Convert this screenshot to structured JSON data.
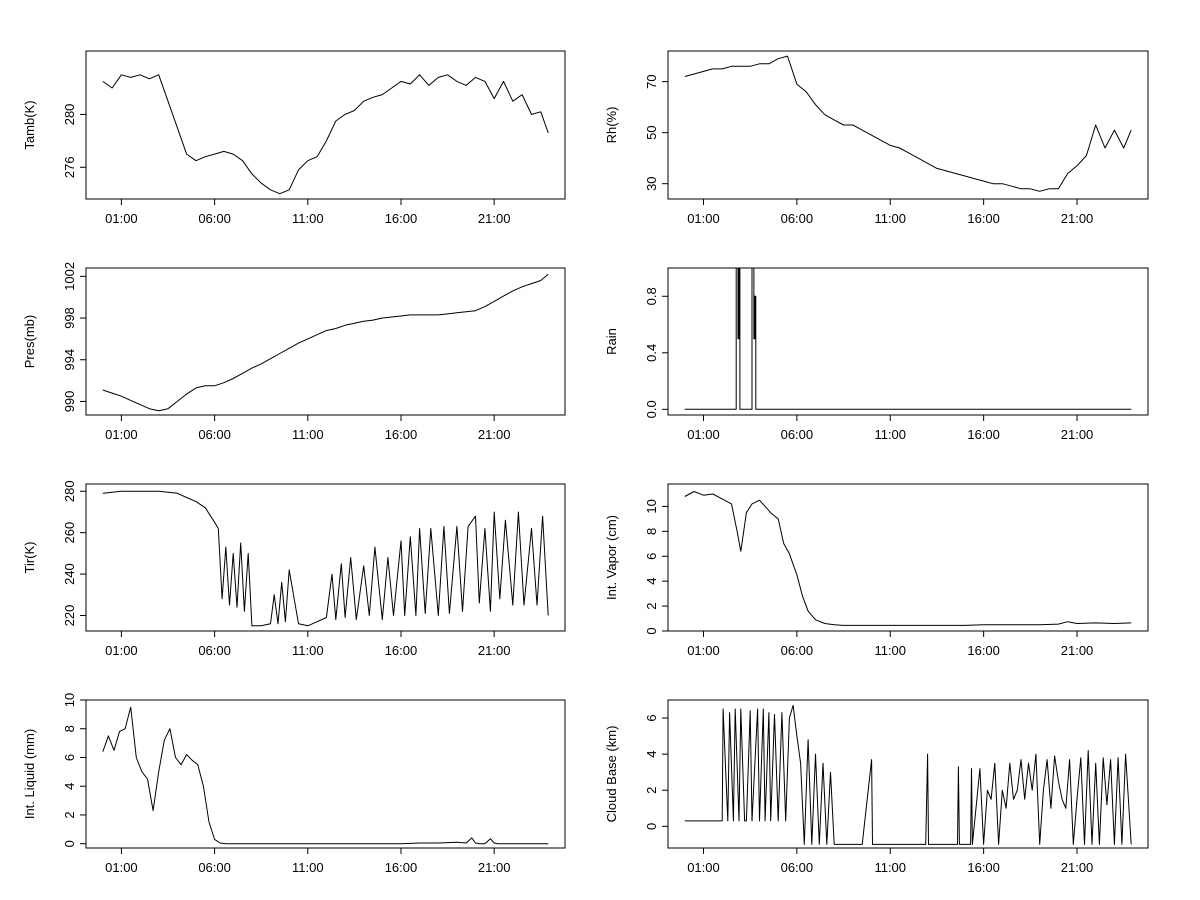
{
  "chart_data": [
    {
      "type": "line",
      "ylabel": "Tamb(K)",
      "xlim": [
        -0.9,
        24.8
      ],
      "ylim": [
        273.6,
        284.8
      ],
      "x_ticks": [
        1,
        6,
        11,
        16,
        21
      ],
      "x_tick_labels": [
        "01:00",
        "06:00",
        "11:00",
        "16:00",
        "21:00"
      ],
      "y_ticks": [
        276,
        280
      ],
      "y_tick_labels": [
        "276",
        "280"
      ],
      "series": [
        {
          "x": [
            0,
            0.5,
            1,
            1.5,
            2,
            2.5,
            3,
            3.5,
            4,
            4.5,
            5,
            5.5,
            6,
            6.5,
            7,
            7.5,
            8,
            8.5,
            9,
            9.5,
            10,
            10.5,
            11,
            11.5,
            12,
            12.5,
            13,
            13.5,
            14,
            14.5,
            15,
            15.5,
            16,
            16.5,
            17,
            17.5,
            18,
            18.5,
            19,
            19.5,
            20,
            20.5,
            21,
            21.5,
            22,
            22.5,
            23,
            23.5,
            23.9
          ],
          "y": [
            282.5,
            282.0,
            283.0,
            282.8,
            283.0,
            282.7,
            283.0,
            281.0,
            279.0,
            277.0,
            276.5,
            276.8,
            277.0,
            277.2,
            277.0,
            276.5,
            275.5,
            274.8,
            274.3,
            274.0,
            274.3,
            275.8,
            276.5,
            276.8,
            278.0,
            279.5,
            280.0,
            280.3,
            281.0,
            281.3,
            281.5,
            282.0,
            282.5,
            282.3,
            283.0,
            282.2,
            282.8,
            283.0,
            282.5,
            282.2,
            282.8,
            282.5,
            281.2,
            282.5,
            281.0,
            281.5,
            280.0,
            280.2,
            278.6
          ]
        }
      ]
    },
    {
      "type": "line",
      "ylabel": "Rh(%)",
      "xlim": [
        -0.9,
        24.8
      ],
      "ylim": [
        24,
        82
      ],
      "x_ticks": [
        1,
        6,
        11,
        16,
        21
      ],
      "x_tick_labels": [
        "01:00",
        "06:00",
        "11:00",
        "16:00",
        "21:00"
      ],
      "y_ticks": [
        30,
        50,
        70
      ],
      "y_tick_labels": [
        "30",
        "50",
        "70"
      ],
      "series": [
        {
          "x": [
            0,
            0.5,
            1,
            1.5,
            2,
            2.5,
            3,
            3.5,
            4,
            4.5,
            5,
            5.5,
            6,
            6.5,
            7,
            7.5,
            8,
            8.5,
            9,
            9.5,
            10,
            10.5,
            11,
            11.5,
            12,
            12.5,
            13,
            13.5,
            14,
            14.5,
            15,
            15.5,
            16,
            16.5,
            17,
            17.5,
            18,
            18.5,
            19,
            19.5,
            20,
            20.5,
            21,
            21.5,
            22,
            22.5,
            23,
            23.5,
            23.9
          ],
          "y": [
            72,
            73,
            74,
            75,
            75,
            76,
            76,
            76,
            77,
            77,
            79,
            80,
            69,
            66,
            61,
            57,
            55,
            53,
            53,
            51,
            49,
            47,
            45,
            44,
            42,
            40,
            38,
            36,
            35,
            34,
            33,
            32,
            31,
            30,
            30,
            29,
            28,
            28,
            27,
            28,
            28,
            34,
            37,
            41,
            53,
            44,
            51,
            44,
            51
          ]
        }
      ]
    },
    {
      "type": "line",
      "ylabel": "Pres(mb)",
      "xlim": [
        -0.9,
        24.8
      ],
      "ylim": [
        988.7,
        1002.8
      ],
      "x_ticks": [
        1,
        6,
        11,
        16,
        21
      ],
      "x_tick_labels": [
        "01:00",
        "06:00",
        "11:00",
        "16:00",
        "21:00"
      ],
      "y_ticks": [
        990,
        994,
        998,
        1002
      ],
      "y_tick_labels": [
        "990",
        "994",
        "998",
        "1002"
      ],
      "series": [
        {
          "x": [
            0,
            0.5,
            1,
            1.5,
            2,
            2.5,
            3,
            3.5,
            4,
            4.5,
            5,
            5.5,
            6,
            6.5,
            7,
            7.5,
            8,
            8.5,
            9,
            9.5,
            10,
            10.5,
            11,
            11.5,
            12,
            12.5,
            13,
            13.5,
            14,
            14.5,
            15,
            15.5,
            16,
            16.5,
            17,
            17.5,
            18,
            18.5,
            19,
            19.5,
            20,
            20.5,
            21,
            21.5,
            22,
            22.5,
            23,
            23.5,
            23.9
          ],
          "y": [
            991.1,
            990.8,
            990.5,
            990.1,
            989.7,
            989.3,
            989.1,
            989.3,
            990.0,
            990.7,
            991.3,
            991.5,
            991.5,
            991.8,
            992.2,
            992.7,
            993.2,
            993.6,
            994.1,
            994.6,
            995.1,
            995.6,
            996.0,
            996.4,
            996.8,
            997.0,
            997.3,
            997.5,
            997.7,
            997.8,
            998.0,
            998.1,
            998.2,
            998.3,
            998.3,
            998.3,
            998.3,
            998.4,
            998.5,
            998.6,
            998.7,
            999.1,
            999.6,
            1000.1,
            1000.6,
            1001.0,
            1001.3,
            1001.6,
            1002.2
          ]
        }
      ]
    },
    {
      "type": "line",
      "ylabel": "Rain",
      "xlim": [
        -0.9,
        24.8
      ],
      "ylim": [
        -0.04,
        1.0
      ],
      "x_ticks": [
        1,
        6,
        11,
        16,
        21
      ],
      "x_tick_labels": [
        "01:00",
        "06:00",
        "11:00",
        "16:00",
        "21:00"
      ],
      "y_ticks": [
        0.0,
        0.4,
        0.8
      ],
      "y_tick_labels": [
        "0.0",
        "0.4",
        "0.8"
      ],
      "series": [
        {
          "x": [
            0,
            2.75,
            2.75,
            2.85,
            2.85,
            2.9,
            2.9,
            2.95,
            2.95,
            3.6,
            3.6,
            3.7,
            3.7,
            3.75,
            3.75,
            3.8,
            3.8,
            23.9
          ],
          "y": [
            0,
            0,
            1,
            1,
            0.5,
            0.5,
            1,
            1,
            0,
            0,
            1,
            1,
            0.5,
            0.5,
            0.8,
            0.8,
            0,
            0
          ]
        }
      ]
    },
    {
      "type": "line",
      "ylabel": "Tir(K)",
      "xlim": [
        -0.9,
        24.8
      ],
      "ylim": [
        212.5,
        283.5
      ],
      "x_ticks": [
        1,
        6,
        11,
        16,
        21
      ],
      "x_tick_labels": [
        "01:00",
        "06:00",
        "11:00",
        "16:00",
        "21:00"
      ],
      "y_ticks": [
        220,
        240,
        260,
        280
      ],
      "y_tick_labels": [
        "220",
        "240",
        "260",
        "280"
      ],
      "series": [
        {
          "x": [
            0,
            1,
            2,
            3,
            4,
            4.5,
            5,
            5.5,
            6,
            6.2,
            6.4,
            6.6,
            6.8,
            7.0,
            7.2,
            7.4,
            7.6,
            7.8,
            8.0,
            8.5,
            9.0,
            9.2,
            9.4,
            9.6,
            9.8,
            10.0,
            10.5,
            11,
            11.5,
            12,
            12.3,
            12.5,
            12.8,
            13.0,
            13.3,
            13.6,
            14.0,
            14.3,
            14.6,
            15.0,
            15.3,
            15.6,
            16.0,
            16.2,
            16.5,
            16.8,
            17.0,
            17.3,
            17.6,
            18.0,
            18.3,
            18.6,
            19.0,
            19.3,
            19.6,
            20.0,
            20.2,
            20.5,
            20.8,
            21.0,
            21.3,
            21.6,
            22.0,
            22.3,
            22.6,
            23.0,
            23.3,
            23.6,
            23.9
          ],
          "y": [
            279,
            280,
            280,
            280,
            279,
            277,
            275,
            272,
            265,
            262,
            228,
            253,
            225,
            250,
            224,
            255,
            222,
            250,
            215,
            215,
            216,
            230,
            216,
            236,
            217,
            242,
            216,
            215,
            217,
            219,
            240,
            218,
            245,
            219,
            248,
            218,
            244,
            220,
            253,
            218,
            248,
            220,
            256,
            220,
            258,
            220,
            262,
            221,
            262,
            220,
            263,
            221,
            263,
            222,
            263,
            268,
            226,
            262,
            222,
            270,
            228,
            266,
            225,
            270,
            225,
            262,
            225,
            268,
            220
          ]
        }
      ]
    },
    {
      "type": "line",
      "ylabel": "Int. Vapor (cm)",
      "xlim": [
        -0.9,
        24.8
      ],
      "ylim": [
        0,
        11.8
      ],
      "x_ticks": [
        1,
        6,
        11,
        16,
        21
      ],
      "x_tick_labels": [
        "01:00",
        "06:00",
        "11:00",
        "16:00",
        "21:00"
      ],
      "y_ticks": [
        0,
        2,
        4,
        6,
        8,
        10
      ],
      "y_tick_labels": [
        "0",
        "2",
        "4",
        "6",
        "8",
        "10"
      ],
      "series": [
        {
          "x": [
            0,
            0.5,
            1,
            1.5,
            2,
            2.5,
            2.8,
            3.0,
            3.3,
            3.6,
            4,
            4.3,
            4.6,
            5.0,
            5.3,
            5.6,
            6.0,
            6.3,
            6.6,
            7.0,
            7.5,
            8,
            8.5,
            9,
            10,
            11,
            12,
            13,
            14,
            15,
            16,
            17,
            18,
            19,
            20,
            20.5,
            21,
            22,
            23,
            23.9
          ],
          "y": [
            10.8,
            11.2,
            10.9,
            11.0,
            10.6,
            10.2,
            8.0,
            6.4,
            9.5,
            10.2,
            10.5,
            10.0,
            9.5,
            9.0,
            7.0,
            6.2,
            4.5,
            2.8,
            1.6,
            0.9,
            0.6,
            0.5,
            0.45,
            0.45,
            0.45,
            0.45,
            0.45,
            0.45,
            0.45,
            0.45,
            0.5,
            0.5,
            0.5,
            0.5,
            0.55,
            0.75,
            0.6,
            0.65,
            0.6,
            0.65
          ]
        }
      ]
    },
    {
      "type": "line",
      "ylabel": "Int. Liquid (mm)",
      "xlim": [
        -0.9,
        24.8
      ],
      "ylim": [
        -0.3,
        10.0
      ],
      "x_ticks": [
        1,
        6,
        11,
        16,
        21
      ],
      "x_tick_labels": [
        "01:00",
        "06:00",
        "11:00",
        "16:00",
        "21:00"
      ],
      "y_ticks": [
        0,
        2,
        4,
        6,
        8,
        10
      ],
      "y_tick_labels": [
        "0",
        "2",
        "4",
        "6",
        "8",
        "10"
      ],
      "series": [
        {
          "x": [
            0,
            0.3,
            0.6,
            0.9,
            1.2,
            1.5,
            1.8,
            2.1,
            2.4,
            2.7,
            3.0,
            3.3,
            3.6,
            3.9,
            4.2,
            4.5,
            4.8,
            5.1,
            5.4,
            5.7,
            6.0,
            6.3,
            6.6,
            7,
            8,
            10,
            12,
            14,
            16,
            17,
            18,
            19,
            19.5,
            19.8,
            20,
            20.2,
            20.5,
            20.8,
            21,
            21.2,
            21.5,
            22,
            23,
            23.9
          ],
          "y": [
            6.4,
            7.5,
            6.5,
            7.8,
            8.0,
            9.5,
            6.0,
            5.0,
            4.5,
            2.3,
            5.0,
            7.2,
            8.0,
            6.0,
            5.5,
            6.2,
            5.8,
            5.5,
            4.0,
            1.5,
            0.3,
            0.05,
            0.0,
            0.0,
            0.0,
            0.0,
            0.0,
            0.0,
            0.0,
            0.05,
            0.05,
            0.1,
            0.05,
            0.4,
            0.05,
            0.0,
            0.0,
            0.35,
            0.05,
            0.0,
            0.0,
            0.0,
            0.0,
            0.0
          ]
        }
      ]
    },
    {
      "type": "line",
      "ylabel": "Cloud Base (km)",
      "xlim": [
        -0.9,
        24.8
      ],
      "ylim": [
        -1.2,
        7.0
      ],
      "x_ticks": [
        1,
        6,
        11,
        16,
        21
      ],
      "x_tick_labels": [
        "01:00",
        "06:00",
        "11:00",
        "16:00",
        "21:00"
      ],
      "y_ticks": [
        0,
        2,
        4,
        6
      ],
      "y_tick_labels": [
        "0",
        "2",
        "4",
        "6"
      ],
      "series": [
        {
          "x": [
            0,
            1.0,
            1.6,
            2.0,
            2.05,
            2.3,
            2.4,
            2.6,
            2.7,
            2.9,
            3.0,
            3.2,
            3.3,
            3.5,
            3.6,
            3.9,
            4.0,
            4.2,
            4.3,
            4.5,
            4.6,
            4.8,
            5.0,
            5.2,
            5.4,
            5.6,
            5.8,
            6.0,
            6.2,
            6.4,
            6.6,
            6.8,
            7.0,
            7.2,
            7.4,
            7.6,
            7.8,
            8.0,
            9.0,
            9.5,
            10.0,
            10.05,
            10.1,
            11,
            12,
            12.9,
            13.0,
            13.05,
            14,
            14.6,
            14.65,
            14.7,
            15,
            15.3,
            15.35,
            15.4,
            15.8,
            16.0,
            16.2,
            16.4,
            16.6,
            16.8,
            17.0,
            17.2,
            17.4,
            17.6,
            17.8,
            18.0,
            18.2,
            18.4,
            18.6,
            18.8,
            19.0,
            19.2,
            19.4,
            19.6,
            19.8,
            20.0,
            20.2,
            20.4,
            20.6,
            20.8,
            21.0,
            21.2,
            21.4,
            21.6,
            21.8,
            22.0,
            22.2,
            22.4,
            22.6,
            22.8,
            23.0,
            23.2,
            23.4,
            23.6,
            23.9
          ],
          "y": [
            0.3,
            0.3,
            0.3,
            0.3,
            6.5,
            0.3,
            6.3,
            0.3,
            6.5,
            0.3,
            6.5,
            0.3,
            0.3,
            6.4,
            0.3,
            6.5,
            0.3,
            6.5,
            0.3,
            6.3,
            0.3,
            6.2,
            0.3,
            6.3,
            0.3,
            6.0,
            6.7,
            5.0,
            3.5,
            -1.0,
            4.8,
            -1.0,
            4.0,
            -1.0,
            3.5,
            -1.0,
            3.0,
            -1.0,
            -1.0,
            -1.0,
            3.7,
            -1.0,
            -1.0,
            -1.0,
            -1.0,
            -1.0,
            4.0,
            -1.0,
            -1.0,
            -1.0,
            3.3,
            -1.0,
            -1.0,
            -1.0,
            3.2,
            -1.0,
            3.2,
            -1.0,
            2.0,
            1.5,
            3.5,
            -1.0,
            2.0,
            1.0,
            3.5,
            1.5,
            2.0,
            3.7,
            1.5,
            3.5,
            2.0,
            4.0,
            -1.0,
            2.0,
            3.7,
            1.0,
            3.9,
            2.5,
            1.5,
            1.0,
            3.7,
            -1.0,
            1.5,
            3.8,
            -1.0,
            4.2,
            -1.0,
            3.5,
            -1.0,
            3.8,
            1.2,
            3.7,
            -1.0,
            3.8,
            -1.0,
            4.0,
            -1.0
          ]
        }
      ]
    }
  ]
}
